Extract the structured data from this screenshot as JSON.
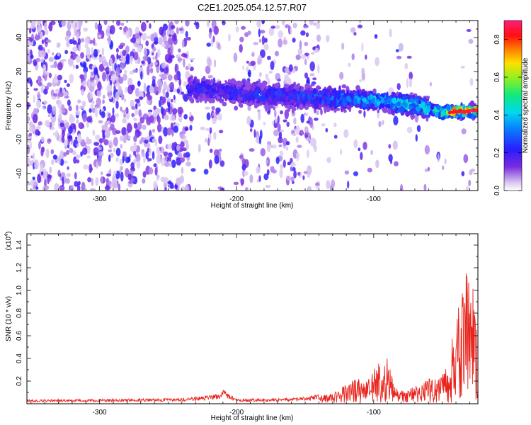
{
  "figure_title": "C2E1.2025.054.12.57.R07",
  "chart_data": [
    {
      "type": "heatmap",
      "title": "C2E1.2025.054.12.57.R07",
      "xlabel": "Height of straight line (km)",
      "ylabel": "Frequency (Hz)",
      "xlim": [
        -353,
        -24
      ],
      "ylim": [
        -50,
        50
      ],
      "x_ticks": [
        -300,
        -200,
        -100
      ],
      "x_tick_labels": [
        "-300",
        "-200",
        "-100"
      ],
      "y_ticks": [
        -40,
        -20,
        0,
        20,
        40
      ],
      "y_tick_labels": [
        "-40",
        "-20",
        "0",
        "20",
        "40"
      ],
      "colorbar": {
        "label": "Normalized spectral amplitude",
        "range": [
          0.0,
          0.9
        ],
        "ticks": [
          0.0,
          0.2,
          0.4,
          0.6,
          0.8
        ],
        "tick_labels": [
          "0.0",
          "0.2",
          "0.4",
          "0.6",
          "0.8"
        ],
        "colormap": "rainbow (white-violet-blue-cyan-green-yellow-red-magenta)"
      },
      "description_series": {
        "ridge_center_hz": [
          {
            "x": -230,
            "y": 10
          },
          {
            "x": -200,
            "y": 7
          },
          {
            "x": -150,
            "y": 5
          },
          {
            "x": -100,
            "y": 3
          },
          {
            "x": -70,
            "y": 0
          },
          {
            "x": -50,
            "y": -4
          },
          {
            "x": -24,
            "y": -3
          }
        ],
        "amplitude_along_ridge": [
          {
            "x": -230,
            "y": 0.25
          },
          {
            "x": -150,
            "y": 0.3
          },
          {
            "x": -110,
            "y": 0.4
          },
          {
            "x": -80,
            "y": 0.5
          },
          {
            "x": -55,
            "y": 0.55
          },
          {
            "x": -40,
            "y": 0.9
          },
          {
            "x": -24,
            "y": 0.8
          }
        ]
      },
      "colors": {
        "hot": "#ff2020",
        "background": "#ffffff"
      }
    },
    {
      "type": "line",
      "xlabel": "Height of straight line (km)",
      "ylabel": "SNR (10 * v/v)",
      "y_multiplier_label": "(x10",
      "y_multiplier_exp": "4",
      "y_multiplier_close": ")",
      "xlim": [
        -353,
        -24
      ],
      "ylim": [
        0,
        15000
      ],
      "x_ticks": [
        -300,
        -200,
        -100
      ],
      "x_tick_labels": [
        "-300",
        "-200",
        "-100"
      ],
      "y_ticks": [
        2000,
        4000,
        6000,
        8000,
        10000,
        12000,
        14000
      ],
      "y_tick_labels": [
        "0.2",
        "0.4",
        "0.6",
        "0.8",
        "1.0",
        "1.2",
        "1.4"
      ],
      "series": [
        {
          "color": "#e8241c",
          "x": [
            -353,
            -300,
            -240,
            -215,
            -210,
            -205,
            -200,
            -170,
            -150,
            -130,
            -120,
            -110,
            -100,
            -90,
            -85,
            -80,
            -70,
            -60,
            -50,
            -45,
            -40,
            -35,
            -30,
            -27,
            -24
          ],
          "y": [
            300,
            350,
            400,
            700,
            1100,
            700,
            350,
            400,
            500,
            900,
            1700,
            2500,
            3200,
            4200,
            1500,
            1200,
            1500,
            2200,
            2500,
            4500,
            7500,
            11000,
            14000,
            10000,
            5000
          ]
        }
      ]
    }
  ]
}
